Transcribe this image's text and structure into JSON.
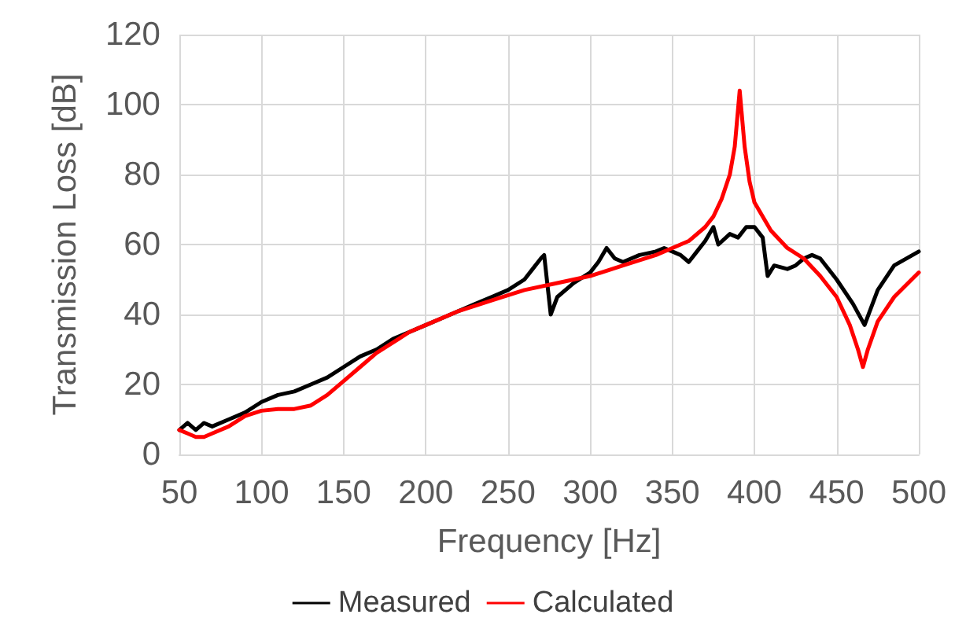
{
  "chart_data": {
    "type": "line",
    "xlabel": "Frequency [Hz]",
    "ylabel": "Transmission Loss [dB]",
    "xlim": [
      50,
      500
    ],
    "xticks": [
      50,
      100,
      150,
      200,
      250,
      300,
      350,
      400,
      450,
      500
    ],
    "ylim": [
      0,
      120
    ],
    "yticks": [
      0,
      20,
      40,
      60,
      80,
      100,
      120
    ],
    "grid": true,
    "legend": "bottom",
    "marker": "none",
    "line_style": "solid",
    "series": [
      {
        "name": "Measured",
        "color": "#000000",
        "x": [
          50,
          55,
          60,
          65,
          70,
          80,
          90,
          100,
          110,
          120,
          130,
          140,
          150,
          160,
          170,
          180,
          190,
          200,
          210,
          220,
          230,
          240,
          250,
          260,
          265,
          270,
          272,
          276,
          280,
          290,
          300,
          305,
          310,
          315,
          320,
          330,
          340,
          345,
          350,
          355,
          360,
          365,
          370,
          375,
          378,
          385,
          390,
          395,
          400,
          405,
          408,
          412,
          420,
          425,
          430,
          435,
          440,
          450,
          460,
          467,
          475,
          485,
          500
        ],
        "values": [
          7,
          9,
          7,
          9,
          8,
          10,
          12,
          15,
          17,
          18,
          20,
          22,
          25,
          28,
          30,
          33,
          35,
          37,
          39,
          41,
          43,
          45,
          47,
          50,
          53,
          56,
          57,
          40,
          45,
          49,
          52,
          55,
          59,
          56,
          55,
          57,
          58,
          59,
          58,
          57,
          55,
          58,
          61,
          65,
          60,
          63,
          62,
          65,
          65,
          62,
          51,
          54,
          53,
          54,
          56,
          57,
          56,
          50,
          43,
          37,
          47,
          54,
          58
        ]
      },
      {
        "name": "Calculated",
        "color": "#ff0000",
        "x": [
          50,
          55,
          60,
          65,
          70,
          80,
          90,
          100,
          110,
          120,
          130,
          140,
          150,
          160,
          170,
          180,
          190,
          200,
          220,
          240,
          260,
          280,
          300,
          320,
          340,
          350,
          360,
          370,
          375,
          380,
          385,
          388,
          391,
          394,
          397,
          400,
          410,
          420,
          430,
          440,
          450,
          458,
          463,
          466,
          469,
          475,
          485,
          500
        ],
        "values": [
          7,
          6,
          5,
          5,
          6,
          8,
          11,
          12.5,
          13,
          13,
          14,
          17,
          21,
          25,
          29,
          32,
          35,
          37,
          41,
          44,
          47,
          49,
          51,
          54,
          57,
          59,
          61,
          65,
          68,
          73,
          80,
          88,
          104,
          88,
          78,
          72,
          64,
          59,
          56,
          51,
          45,
          37,
          30,
          25,
          30,
          38,
          45,
          52
        ]
      }
    ]
  }
}
